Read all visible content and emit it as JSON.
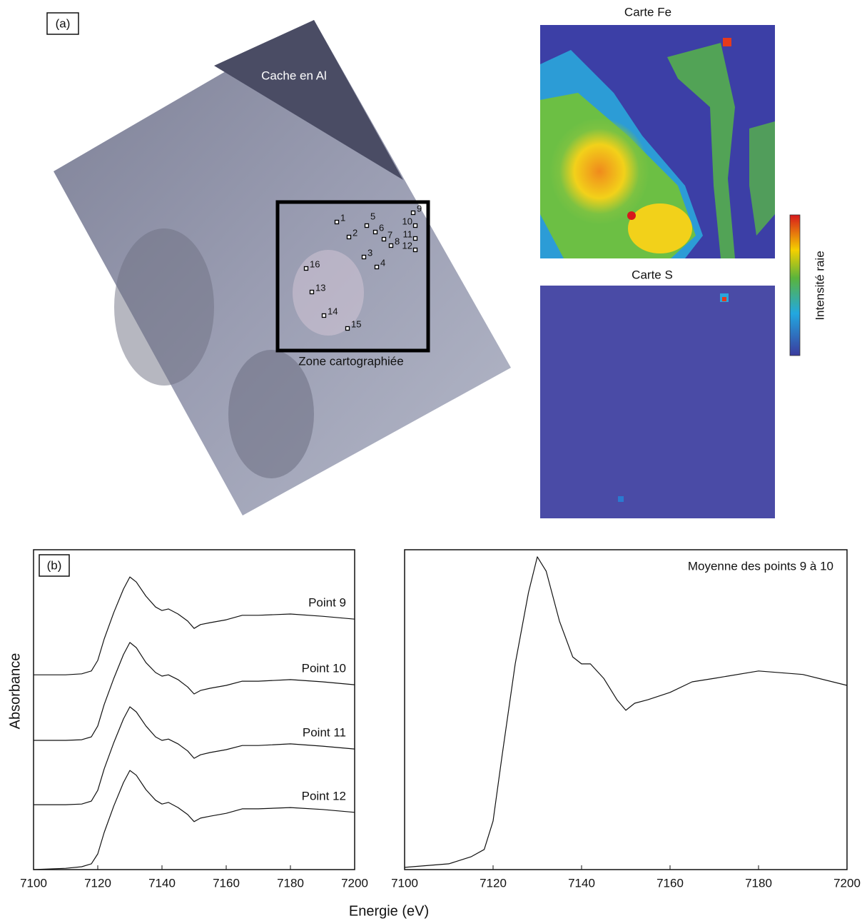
{
  "panel_a": {
    "label": "(a)",
    "mask_label": "Cache en Al",
    "zone_label": "Zone cartographiée",
    "points": [
      "1",
      "2",
      "3",
      "4",
      "5",
      "6",
      "7",
      "8",
      "9",
      "10",
      "11",
      "12",
      "13",
      "14",
      "15",
      "16"
    ],
    "map_fe_title": "Carte Fe",
    "map_s_title": "Carte S",
    "colorbar_label": "Intensité raie"
  },
  "shared_axes": {
    "x_label": "Energie (eV)",
    "y_label": "Absorbance"
  },
  "chart_data": [
    {
      "type": "line",
      "label": "(b)",
      "x": [
        7100,
        7110,
        7115,
        7118,
        7120,
        7122,
        7125,
        7128,
        7130,
        7132,
        7135,
        7138,
        7140,
        7142,
        7145,
        7148,
        7150,
        7152,
        7155,
        7160,
        7165,
        7170,
        7180,
        7190,
        7200
      ],
      "xlim": [
        7100,
        7200
      ],
      "xticks": [
        7100,
        7120,
        7140,
        7160,
        7180,
        7200
      ],
      "ylim": [
        0,
        100
      ],
      "series": [
        {
          "name": "Point 9",
          "color": "#111111",
          "values": [
            60.9,
            60.9,
            61.2,
            62.1,
            65.4,
            72.1,
            80.4,
            87.7,
            91.5,
            89.9,
            85.5,
            82.1,
            81.0,
            81.5,
            79.9,
            77.7,
            75.4,
            76.6,
            77.2,
            78.1,
            79.5,
            79.5,
            79.9,
            79.2,
            78.3
          ]
        },
        {
          "name": "Point 10",
          "color": "#111111",
          "values": [
            40.4,
            40.4,
            40.6,
            41.5,
            44.9,
            51.6,
            59.8,
            67.2,
            71.0,
            69.4,
            64.7,
            61.6,
            60.5,
            60.9,
            59.4,
            57.1,
            54.9,
            56.0,
            56.7,
            57.6,
            58.9,
            58.9,
            59.4,
            58.7,
            57.8
          ]
        },
        {
          "name": "Point 11",
          "color": "#111111",
          "values": [
            20.3,
            20.3,
            20.5,
            21.4,
            24.8,
            31.5,
            39.7,
            47.1,
            50.9,
            49.3,
            44.9,
            41.5,
            40.4,
            40.8,
            39.3,
            37.1,
            34.8,
            35.9,
            36.6,
            37.5,
            38.8,
            38.8,
            39.3,
            38.6,
            37.7
          ]
        },
        {
          "name": "Point 12",
          "color": "#111111",
          "values": [
            0,
            0.4,
            0.9,
            1.8,
            4.9,
            11.6,
            19.9,
            27.2,
            31.0,
            29.5,
            25.0,
            21.7,
            20.5,
            21.0,
            19.4,
            17.2,
            15.0,
            16.1,
            16.7,
            17.6,
            19.0,
            19.0,
            19.4,
            18.8,
            17.9
          ]
        }
      ]
    },
    {
      "type": "line",
      "annotation": "Moyenne des points 9 à 10",
      "x": [
        7100,
        7110,
        7115,
        7118,
        7120,
        7122,
        7125,
        7128,
        7130,
        7132,
        7135,
        7138,
        7140,
        7142,
        7145,
        7148,
        7150,
        7152,
        7155,
        7160,
        7165,
        7170,
        7180,
        7190,
        7200
      ],
      "xlim": [
        7100,
        7200
      ],
      "xticks": [
        7100,
        7120,
        7140,
        7160,
        7180,
        7200
      ],
      "ylim": [
        0,
        100
      ],
      "series": [
        {
          "color": "#111111",
          "values": [
            0.7,
            1.8,
            4.0,
            6.3,
            15.2,
            35.3,
            64.3,
            86.6,
            97.8,
            93.3,
            77.7,
            66.5,
            64.3,
            64.3,
            59.8,
            53.1,
            49.8,
            52.0,
            53.1,
            55.4,
            58.7,
            59.8,
            62.1,
            61.0,
            57.6
          ]
        }
      ]
    }
  ]
}
